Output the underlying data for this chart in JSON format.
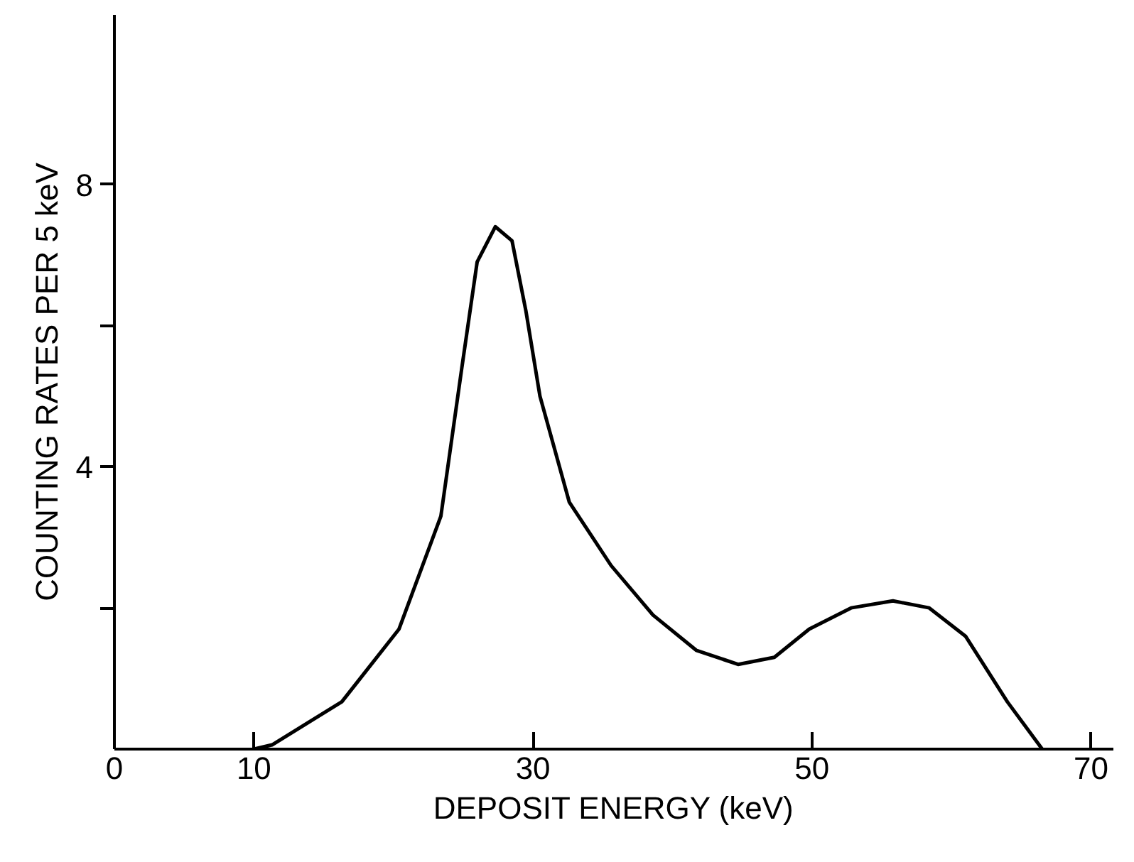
{
  "chart_data": {
    "type": "line",
    "xlabel": "DEPOSIT ENERGY (keV)",
    "ylabel": "COUNTING RATES PER 5 keV",
    "x": [
      10.0,
      11.3,
      16.3,
      20.4,
      23.4,
      24.9,
      26.0,
      27.3,
      28.5,
      29.5,
      30.5,
      32.6,
      35.6,
      38.6,
      41.7,
      44.7,
      47.3,
      49.8,
      52.8,
      55.8,
      58.4,
      61.0,
      64.0,
      66.5
    ],
    "series": [
      {
        "color": "#000000",
        "values": [
          0,
          0.06,
          0.67,
          1.7,
          3.3,
          5.4,
          6.9,
          7.4,
          7.2,
          6.2,
          5.0,
          3.5,
          2.6,
          1.9,
          1.4,
          1.2,
          1.3,
          1.7,
          2.0,
          2.1,
          2.0,
          1.6,
          0.67,
          0
        ]
      }
    ],
    "xlim": [
      0,
      71.6
    ],
    "ylim": [
      0,
      10.4
    ],
    "xticks": [
      0,
      10,
      30,
      50,
      70
    ],
    "yticks": [
      {
        "value": 2,
        "label": null
      },
      4,
      {
        "value": 6,
        "label": null
      },
      8
    ],
    "grid": false,
    "marker": "none",
    "line_style": "solid"
  }
}
